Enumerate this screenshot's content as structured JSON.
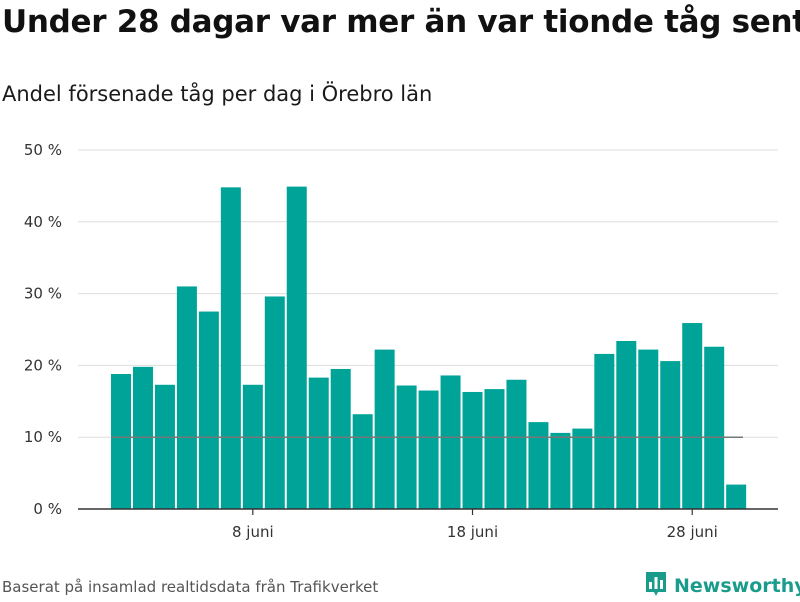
{
  "header": {
    "title": "Under 28 dagar var mer än var tionde tåg sent",
    "subtitle": "Andel försenade tåg per dag i Örebro län"
  },
  "footer": {
    "source": "Baserat på insamlad realtidsdata från Trafikverket",
    "brand": "Newsworthy",
    "brand_icon": "bar-chart-logo-icon"
  },
  "colors": {
    "bar": "#00a398",
    "reference_line": "#777777",
    "grid": "#dddddd",
    "brand": "#1a9c8c"
  },
  "chart_data": {
    "type": "bar",
    "title": "Under 28 dagar var mer än var tionde tåg sent",
    "subtitle": "Andel försenade tåg per dag i Örebro län",
    "xlabel": "",
    "ylabel": "",
    "categories": [
      "2 juni",
      "3 juni",
      "4 juni",
      "5 juni",
      "6 juni",
      "7 juni",
      "8 juni",
      "9 juni",
      "10 juni",
      "11 juni",
      "12 juni",
      "13 juni",
      "14 juni",
      "15 juni",
      "16 juni",
      "17 juni",
      "18 juni",
      "19 juni",
      "20 juni",
      "21 juni",
      "22 juni",
      "23 juni",
      "24 juni",
      "25 juni",
      "26 juni",
      "27 juni",
      "28 juni",
      "29 juni",
      "30 juni"
    ],
    "values": [
      18.8,
      19.8,
      17.3,
      31.0,
      27.5,
      44.8,
      17.3,
      29.6,
      44.9,
      18.3,
      19.5,
      13.2,
      22.2,
      17.2,
      16.5,
      18.6,
      16.3,
      16.7,
      18.0,
      12.1,
      10.6,
      11.2,
      21.6,
      23.4,
      22.2,
      20.6,
      25.9,
      22.6,
      3.4
    ],
    "ylim": [
      0,
      50
    ],
    "yticks": [
      0,
      10,
      20,
      30,
      40,
      50
    ],
    "ytick_labels": [
      "0 %",
      "10 %",
      "20 %",
      "30 %",
      "40 %",
      "50 %"
    ],
    "xticks": [
      "8 juni",
      "18 juni",
      "28 juni"
    ],
    "reference_line": 10,
    "grid": true,
    "legend": "none"
  }
}
